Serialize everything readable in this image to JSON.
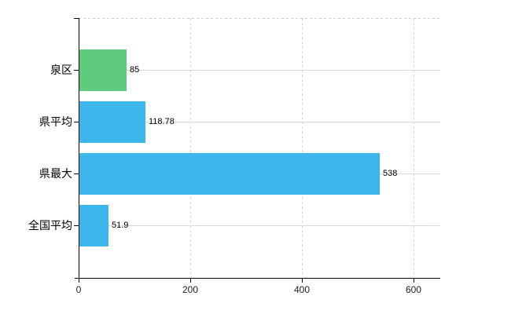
{
  "chart_data": {
    "type": "bar",
    "orientation": "horizontal",
    "title": "",
    "xlabel": "",
    "ylabel": "",
    "categories": [
      "泉区",
      "県平均",
      "県最大",
      "全国平均"
    ],
    "values": [
      85,
      118.78,
      538,
      51.9
    ],
    "value_labels": [
      "85",
      "118.78",
      "538",
      "51.9"
    ],
    "bar_colors": [
      "#5fcb7e",
      "#3bb7ec",
      "#3bb7ec",
      "#3bb7ec"
    ],
    "x_tick_labels": [
      "0",
      "200",
      "400",
      "600"
    ],
    "x_tick_values": [
      0,
      200,
      400,
      600
    ],
    "xlim": [
      0,
      648
    ],
    "legend": null,
    "grid": {
      "horizontal_style": "solid",
      "vertical_style": "dashed",
      "top_border_style": "dashed"
    },
    "colors": {
      "axis": "#000000",
      "grid_horizontal": "#d4ded4",
      "grid_vertical": "#d7d4d7",
      "top_border": "#cfcccf",
      "tick_label": "#222222",
      "value_label": "#000000",
      "category_label": "#000000",
      "background": "#ffffff"
    }
  }
}
